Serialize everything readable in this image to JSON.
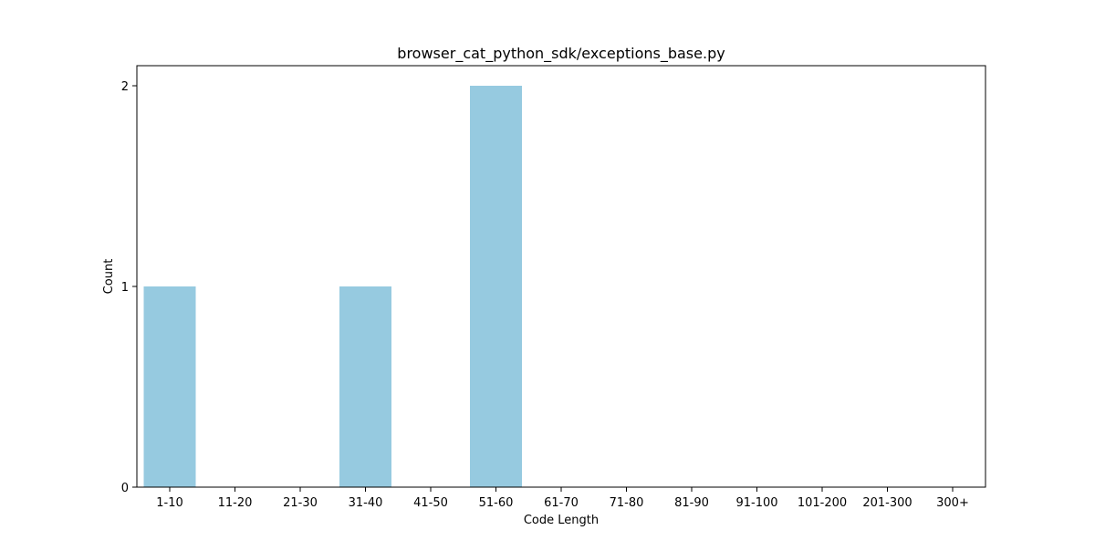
{
  "chart_data": {
    "type": "bar",
    "title": "browser_cat_python_sdk/exceptions_base.py",
    "xlabel": "Code Length",
    "ylabel": "Count",
    "categories": [
      "1-10",
      "11-20",
      "21-30",
      "31-40",
      "41-50",
      "51-60",
      "61-70",
      "71-80",
      "81-90",
      "91-100",
      "101-200",
      "201-300",
      "300+"
    ],
    "values": [
      1,
      0,
      0,
      1,
      0,
      2,
      0,
      0,
      0,
      0,
      0,
      0,
      0
    ],
    "ylim": [
      0,
      2.1
    ],
    "yticks": [
      0,
      1,
      2
    ],
    "grid": false,
    "legend": "none",
    "bar_color": "#96CAE0"
  }
}
